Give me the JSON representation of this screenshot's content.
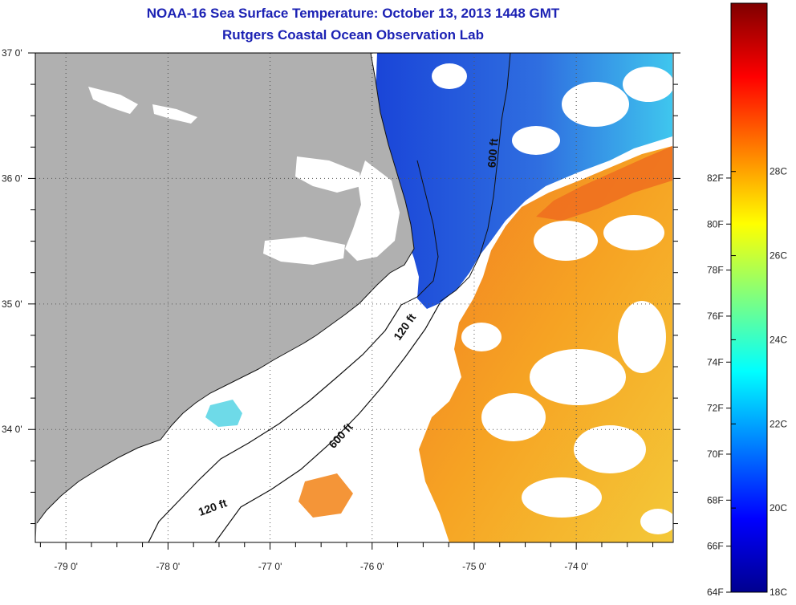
{
  "title": "NOAA-16 Sea Surface Temperature:  October 13, 2013 1448 GMT",
  "subtitle": "Rutgers Coastal Ocean Observation Lab",
  "map": {
    "lat_ticks": [
      {
        "label": "37 0'",
        "value": 37.0
      },
      {
        "label": "36 0'",
        "value": 36.0
      },
      {
        "label": "35 0'",
        "value": 35.0
      },
      {
        "label": "34 0'",
        "value": 34.0
      }
    ],
    "lon_ticks": [
      {
        "label": "-79 0'",
        "value": -79.0
      },
      {
        "label": "-78 0'",
        "value": -78.0
      },
      {
        "label": "-77 0'",
        "value": -77.0
      },
      {
        "label": "-76 0'",
        "value": -76.0
      },
      {
        "label": "-75 0'",
        "value": -75.0
      },
      {
        "label": "-74 0'",
        "value": -74.0
      }
    ],
    "lat_range": [
      33.1,
      37.0
    ],
    "lon_range": [
      -79.3,
      -73.05
    ],
    "gridlines": "dotted",
    "land_color": "#b0b0b0",
    "contour_labels": [
      {
        "label": "600 ft",
        "lon": -74.78,
        "lat": 36.2
      },
      {
        "label": "120 ft",
        "lon": -75.65,
        "lat": 34.8
      },
      {
        "label": "600 ft",
        "lon": -76.28,
        "lat": 33.93
      },
      {
        "label": "120 ft",
        "lon": -77.55,
        "lat": 33.35
      }
    ]
  },
  "colorbar": {
    "fahrenheit": [
      "82F",
      "80F",
      "78F",
      "76F",
      "74F",
      "72F",
      "70F",
      "68F",
      "66F",
      "64F"
    ],
    "celsius": [
      "28C",
      "26C",
      "24C",
      "22C",
      "20C",
      "18C"
    ],
    "f_range": [
      64,
      89.6
    ],
    "c_range": [
      18,
      32
    ]
  }
}
